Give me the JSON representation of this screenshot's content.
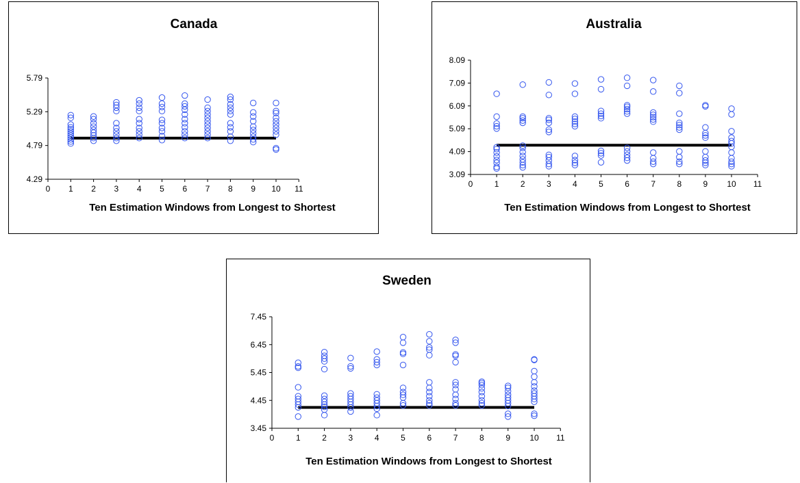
{
  "chart_data": [
    {
      "type": "scatter",
      "title": "Canada",
      "xlabel": "Ten Estimation Windows from Longest to Shortest",
      "ylabel": "",
      "xlim": [
        0,
        11
      ],
      "ylim": [
        4.29,
        5.79
      ],
      "xticks": [
        "0",
        "1",
        "2",
        "3",
        "4",
        "5",
        "6",
        "7",
        "8",
        "9",
        "10",
        "11"
      ],
      "yticks": [
        "4.29",
        "4.79",
        "5.29",
        "5.79"
      ],
      "grid": false,
      "legend": "none",
      "marker_color": "#3355ee",
      "reference_line": {
        "y": 4.9,
        "x_from": 1,
        "x_to": 10,
        "color": "#000000"
      },
      "points": [
        [
          1,
          4.82
        ],
        [
          1,
          4.85
        ],
        [
          1,
          4.88
        ],
        [
          1,
          4.91
        ],
        [
          1,
          4.94
        ],
        [
          1,
          4.97
        ],
        [
          1,
          5.0
        ],
        [
          1,
          5.03
        ],
        [
          1,
          5.06
        ],
        [
          1,
          5.1
        ],
        [
          1,
          5.2
        ],
        [
          1,
          5.24
        ],
        [
          2,
          4.86
        ],
        [
          2,
          4.9
        ],
        [
          2,
          4.94
        ],
        [
          2,
          4.98
        ],
        [
          2,
          5.02
        ],
        [
          2,
          5.07
        ],
        [
          2,
          5.12
        ],
        [
          2,
          5.18
        ],
        [
          2,
          5.22
        ],
        [
          3,
          4.86
        ],
        [
          3,
          4.9
        ],
        [
          3,
          4.95
        ],
        [
          3,
          5.0
        ],
        [
          3,
          5.05
        ],
        [
          3,
          5.12
        ],
        [
          3,
          5.3
        ],
        [
          3,
          5.35
        ],
        [
          3,
          5.39
        ],
        [
          3,
          5.43
        ],
        [
          4,
          4.9
        ],
        [
          4,
          4.95
        ],
        [
          4,
          5.0
        ],
        [
          4,
          5.05
        ],
        [
          4,
          5.12
        ],
        [
          4,
          5.18
        ],
        [
          4,
          5.3
        ],
        [
          4,
          5.35
        ],
        [
          4,
          5.41
        ],
        [
          4,
          5.46
        ],
        [
          5,
          4.87
        ],
        [
          5,
          4.93
        ],
        [
          5,
          5.0
        ],
        [
          5,
          5.05
        ],
        [
          5,
          5.12
        ],
        [
          5,
          5.17
        ],
        [
          5,
          5.3
        ],
        [
          5,
          5.36
        ],
        [
          5,
          5.41
        ],
        [
          5,
          5.5
        ],
        [
          6,
          4.9
        ],
        [
          6,
          4.95
        ],
        [
          6,
          5.0
        ],
        [
          6,
          5.06
        ],
        [
          6,
          5.12
        ],
        [
          6,
          5.18
        ],
        [
          6,
          5.25
        ],
        [
          6,
          5.32
        ],
        [
          6,
          5.37
        ],
        [
          6,
          5.41
        ],
        [
          6,
          5.53
        ],
        [
          7,
          4.9
        ],
        [
          7,
          4.95
        ],
        [
          7,
          5.0
        ],
        [
          7,
          5.05
        ],
        [
          7,
          5.1
        ],
        [
          7,
          5.15
        ],
        [
          7,
          5.2
        ],
        [
          7,
          5.25
        ],
        [
          7,
          5.3
        ],
        [
          7,
          5.35
        ],
        [
          7,
          5.47
        ],
        [
          8,
          4.86
        ],
        [
          8,
          4.92
        ],
        [
          8,
          5.0
        ],
        [
          8,
          5.06
        ],
        [
          8,
          5.12
        ],
        [
          8,
          5.25
        ],
        [
          8,
          5.3
        ],
        [
          8,
          5.35
        ],
        [
          8,
          5.4
        ],
        [
          8,
          5.47
        ],
        [
          8,
          5.51
        ],
        [
          9,
          4.84
        ],
        [
          9,
          4.88
        ],
        [
          9,
          4.92
        ],
        [
          9,
          4.97
        ],
        [
          9,
          5.02
        ],
        [
          9,
          5.07
        ],
        [
          9,
          5.15
        ],
        [
          9,
          5.22
        ],
        [
          9,
          5.28
        ],
        [
          9,
          5.42
        ],
        [
          10,
          4.73
        ],
        [
          10,
          4.75
        ],
        [
          10,
          4.95
        ],
        [
          10,
          5.0
        ],
        [
          10,
          5.05
        ],
        [
          10,
          5.1
        ],
        [
          10,
          5.15
        ],
        [
          10,
          5.2
        ],
        [
          10,
          5.27
        ],
        [
          10,
          5.3
        ],
        [
          10,
          5.42
        ]
      ]
    },
    {
      "type": "scatter",
      "title": "Australia",
      "xlabel": "Ten Estimation Windows from Longest to Shortest",
      "ylabel": "",
      "xlim": [
        0,
        11
      ],
      "ylim": [
        3.09,
        8.09
      ],
      "xticks": [
        "0",
        "1",
        "2",
        "3",
        "4",
        "5",
        "6",
        "7",
        "8",
        "9",
        "10",
        "11"
      ],
      "yticks": [
        "3.09",
        "4.09",
        "5.09",
        "6.09",
        "7.09",
        "8.09"
      ],
      "grid": false,
      "legend": "none",
      "marker_color": "#3355ee",
      "reference_line": {
        "y": 4.37,
        "x_from": 1,
        "x_to": 10,
        "color": "#000000"
      },
      "points": [
        [
          1,
          3.35
        ],
        [
          1,
          3.42
        ],
        [
          1,
          3.6
        ],
        [
          1,
          3.72
        ],
        [
          1,
          3.88
        ],
        [
          1,
          4.05
        ],
        [
          1,
          4.2
        ],
        [
          1,
          4.28
        ],
        [
          1,
          5.1
        ],
        [
          1,
          5.2
        ],
        [
          1,
          5.32
        ],
        [
          1,
          5.62
        ],
        [
          1,
          6.62
        ],
        [
          2,
          3.4
        ],
        [
          2,
          3.5
        ],
        [
          2,
          3.62
        ],
        [
          2,
          3.75
        ],
        [
          2,
          3.9
        ],
        [
          2,
          4.07
        ],
        [
          2,
          4.25
        ],
        [
          2,
          4.35
        ],
        [
          2,
          5.35
        ],
        [
          2,
          5.45
        ],
        [
          2,
          5.55
        ],
        [
          2,
          5.62
        ],
        [
          2,
          7.02
        ],
        [
          3,
          3.45
        ],
        [
          3,
          3.55
        ],
        [
          3,
          3.7
        ],
        [
          3,
          3.85
        ],
        [
          3,
          3.95
        ],
        [
          3,
          4.95
        ],
        [
          3,
          5.05
        ],
        [
          3,
          5.35
        ],
        [
          3,
          5.48
        ],
        [
          3,
          5.55
        ],
        [
          3,
          6.57
        ],
        [
          3,
          7.12
        ],
        [
          4,
          3.5
        ],
        [
          4,
          3.6
        ],
        [
          4,
          3.72
        ],
        [
          4,
          3.9
        ],
        [
          4,
          5.2
        ],
        [
          4,
          5.3
        ],
        [
          4,
          5.4
        ],
        [
          4,
          5.52
        ],
        [
          4,
          5.62
        ],
        [
          4,
          6.62
        ],
        [
          4,
          7.07
        ],
        [
          5,
          3.62
        ],
        [
          5,
          3.92
        ],
        [
          5,
          4.02
        ],
        [
          5,
          4.12
        ],
        [
          5,
          5.55
        ],
        [
          5,
          5.65
        ],
        [
          5,
          5.75
        ],
        [
          5,
          5.87
        ],
        [
          5,
          6.82
        ],
        [
          5,
          7.25
        ],
        [
          6,
          3.7
        ],
        [
          6,
          3.82
        ],
        [
          6,
          3.95
        ],
        [
          6,
          4.1
        ],
        [
          6,
          4.25
        ],
        [
          6,
          5.75
        ],
        [
          6,
          5.85
        ],
        [
          6,
          5.95
        ],
        [
          6,
          6.05
        ],
        [
          6,
          6.12
        ],
        [
          6,
          6.97
        ],
        [
          6,
          7.32
        ],
        [
          7,
          3.55
        ],
        [
          7,
          3.65
        ],
        [
          7,
          3.8
        ],
        [
          7,
          4.05
        ],
        [
          7,
          5.4
        ],
        [
          7,
          5.5
        ],
        [
          7,
          5.6
        ],
        [
          7,
          5.7
        ],
        [
          7,
          5.8
        ],
        [
          7,
          6.72
        ],
        [
          7,
          7.22
        ],
        [
          8,
          3.55
        ],
        [
          8,
          3.65
        ],
        [
          8,
          3.85
        ],
        [
          8,
          4.1
        ],
        [
          8,
          5.05
        ],
        [
          8,
          5.15
        ],
        [
          8,
          5.25
        ],
        [
          8,
          5.35
        ],
        [
          8,
          5.75
        ],
        [
          8,
          6.65
        ],
        [
          8,
          6.97
        ],
        [
          9,
          3.5
        ],
        [
          9,
          3.6
        ],
        [
          9,
          3.7
        ],
        [
          9,
          3.85
        ],
        [
          9,
          4.1
        ],
        [
          9,
          4.7
        ],
        [
          9,
          4.8
        ],
        [
          9,
          4.9
        ],
        [
          9,
          5.15
        ],
        [
          9,
          6.07
        ],
        [
          9,
          6.12
        ],
        [
          10,
          3.45
        ],
        [
          10,
          3.55
        ],
        [
          10,
          3.65
        ],
        [
          10,
          3.8
        ],
        [
          10,
          4.05
        ],
        [
          10,
          4.3
        ],
        [
          10,
          4.45
        ],
        [
          10,
          4.55
        ],
        [
          10,
          4.7
        ],
        [
          10,
          4.98
        ],
        [
          10,
          5.72
        ],
        [
          10,
          5.97
        ]
      ]
    },
    {
      "type": "scatter",
      "title": "Sweden",
      "xlabel": "Ten Estimation Windows from Longest to Shortest",
      "ylabel": "",
      "xlim": [
        0,
        11
      ],
      "ylim": [
        3.45,
        7.45
      ],
      "xticks": [
        "0",
        "1",
        "2",
        "3",
        "4",
        "5",
        "6",
        "7",
        "8",
        "9",
        "10",
        "11"
      ],
      "yticks": [
        "3.45",
        "4.45",
        "5.45",
        "6.45",
        "7.45"
      ],
      "grid": false,
      "legend": "none",
      "marker_color": "#3355ee",
      "reference_line": {
        "y": 4.2,
        "x_from": 1,
        "x_to": 10,
        "color": "#000000"
      },
      "points": [
        [
          1,
          3.87
        ],
        [
          1,
          4.2
        ],
        [
          1,
          4.3
        ],
        [
          1,
          4.4
        ],
        [
          1,
          4.5
        ],
        [
          1,
          4.6
        ],
        [
          1,
          4.92
        ],
        [
          1,
          5.62
        ],
        [
          1,
          5.67
        ],
        [
          1,
          5.8
        ],
        [
          2,
          3.92
        ],
        [
          2,
          4.12
        ],
        [
          2,
          4.22
        ],
        [
          2,
          4.3
        ],
        [
          2,
          4.4
        ],
        [
          2,
          4.5
        ],
        [
          2,
          4.62
        ],
        [
          2,
          5.57
        ],
        [
          2,
          5.85
        ],
        [
          2,
          5.95
        ],
        [
          2,
          6.05
        ],
        [
          2,
          6.18
        ],
        [
          3,
          4.05
        ],
        [
          3,
          4.2
        ],
        [
          3,
          4.3
        ],
        [
          3,
          4.4
        ],
        [
          3,
          4.5
        ],
        [
          3,
          4.6
        ],
        [
          3,
          4.7
        ],
        [
          3,
          5.6
        ],
        [
          3,
          5.67
        ],
        [
          3,
          5.97
        ],
        [
          4,
          3.92
        ],
        [
          4,
          4.15
        ],
        [
          4,
          4.25
        ],
        [
          4,
          4.35
        ],
        [
          4,
          4.45
        ],
        [
          4,
          4.55
        ],
        [
          4,
          4.67
        ],
        [
          4,
          5.72
        ],
        [
          4,
          5.82
        ],
        [
          4,
          5.92
        ],
        [
          4,
          6.2
        ],
        [
          5,
          4.27
        ],
        [
          5,
          4.35
        ],
        [
          5,
          4.55
        ],
        [
          5,
          4.65
        ],
        [
          5,
          4.75
        ],
        [
          5,
          4.9
        ],
        [
          5,
          5.72
        ],
        [
          5,
          6.12
        ],
        [
          5,
          6.17
        ],
        [
          5,
          6.52
        ],
        [
          5,
          6.72
        ],
        [
          6,
          4.27
        ],
        [
          6,
          4.35
        ],
        [
          6,
          4.45
        ],
        [
          6,
          4.6
        ],
        [
          6,
          4.75
        ],
        [
          6,
          4.9
        ],
        [
          6,
          5.1
        ],
        [
          6,
          6.07
        ],
        [
          6,
          6.27
        ],
        [
          6,
          6.35
        ],
        [
          6,
          6.57
        ],
        [
          6,
          6.82
        ],
        [
          7,
          4.27
        ],
        [
          7,
          4.35
        ],
        [
          7,
          4.5
        ],
        [
          7,
          4.65
        ],
        [
          7,
          4.85
        ],
        [
          7,
          5.0
        ],
        [
          7,
          5.1
        ],
        [
          7,
          5.82
        ],
        [
          7,
          6.05
        ],
        [
          7,
          6.1
        ],
        [
          7,
          6.52
        ],
        [
          7,
          6.62
        ],
        [
          8,
          4.27
        ],
        [
          8,
          4.35
        ],
        [
          8,
          4.45
        ],
        [
          8,
          4.6
        ],
        [
          8,
          4.75
        ],
        [
          8,
          4.88
        ],
        [
          8,
          5.0
        ],
        [
          8,
          5.07
        ],
        [
          8,
          5.12
        ],
        [
          9,
          3.87
        ],
        [
          9,
          3.97
        ],
        [
          9,
          4.25
        ],
        [
          9,
          4.35
        ],
        [
          9,
          4.45
        ],
        [
          9,
          4.55
        ],
        [
          9,
          4.65
        ],
        [
          9,
          4.78
        ],
        [
          9,
          4.9
        ],
        [
          9,
          4.97
        ],
        [
          10,
          3.9
        ],
        [
          10,
          3.97
        ],
        [
          10,
          4.4
        ],
        [
          10,
          4.5
        ],
        [
          10,
          4.6
        ],
        [
          10,
          4.7
        ],
        [
          10,
          4.8
        ],
        [
          10,
          4.95
        ],
        [
          10,
          5.1
        ],
        [
          10,
          5.3
        ],
        [
          10,
          5.5
        ],
        [
          10,
          5.9
        ],
        [
          10,
          5.92
        ]
      ]
    }
  ]
}
